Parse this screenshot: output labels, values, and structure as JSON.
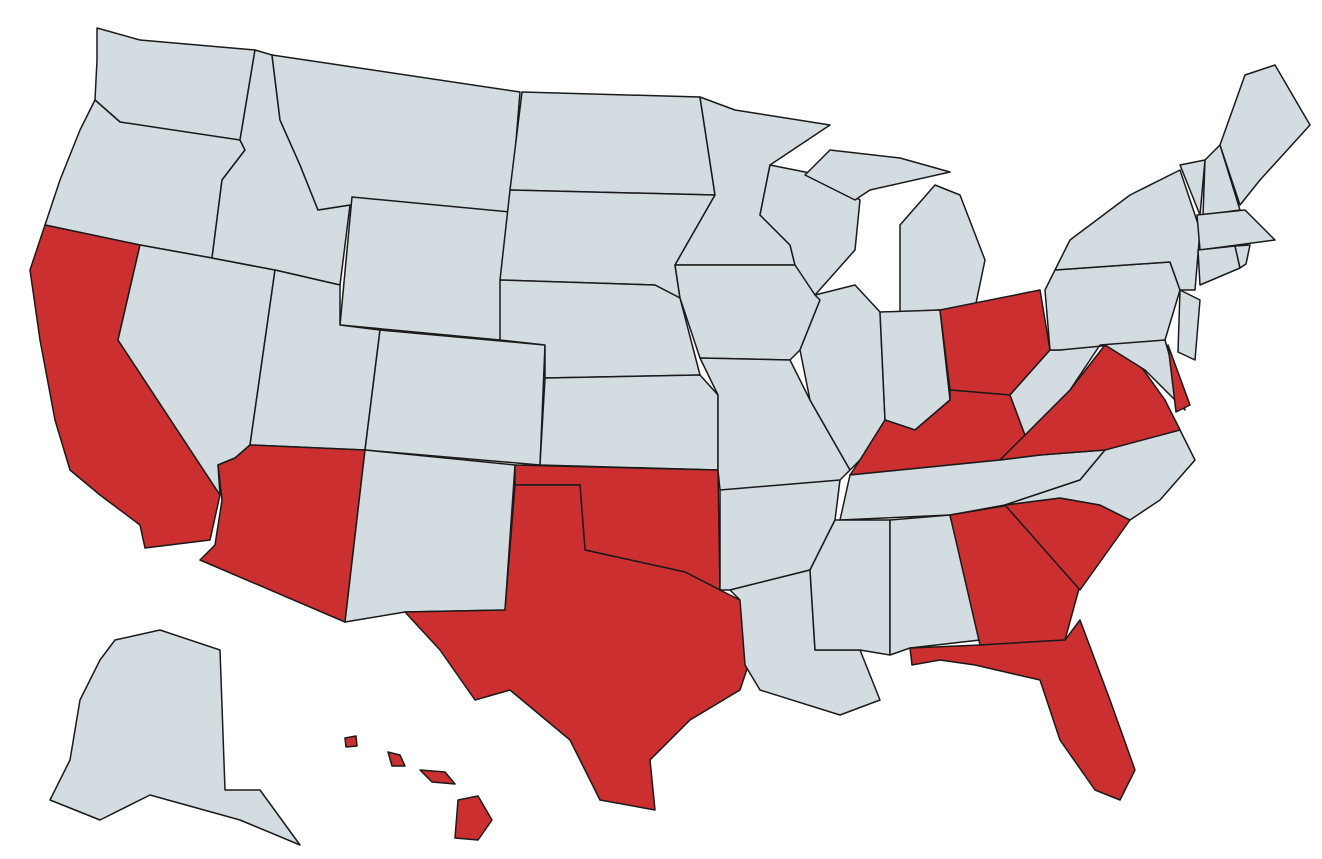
{
  "map": {
    "base_color": "#d3dce0",
    "highlight_color": "#cc2f30",
    "border_color": "#1a1a1a"
  }
}
